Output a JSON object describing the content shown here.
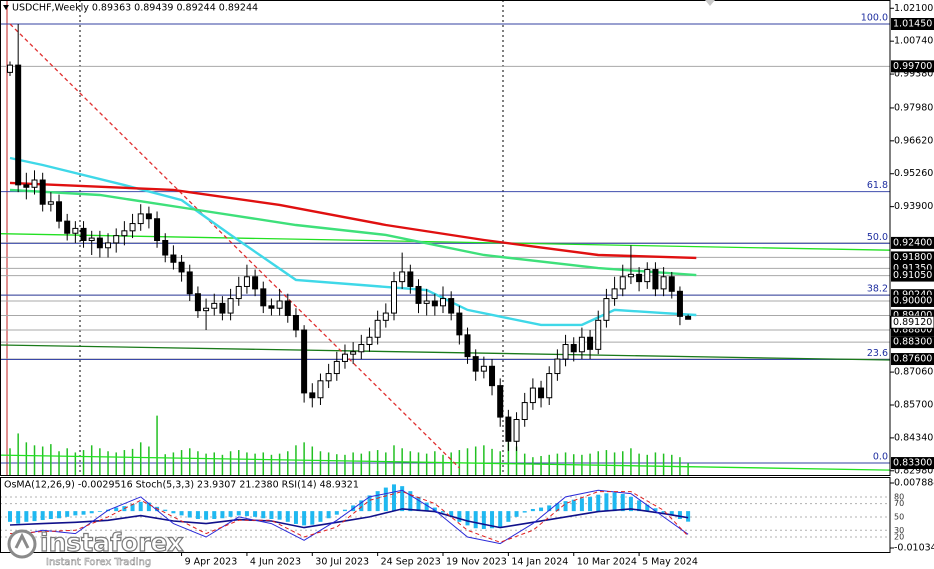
{
  "chart_data": {
    "type": "candlestick",
    "title": "USDCHF,Weekly  0.89363 0.89439 0.89244 0.89244",
    "dates": [
      null,
      null,
      null,
      null,
      null,
      null,
      null,
      null,
      null,
      null,
      null,
      null,
      null,
      null,
      null,
      null,
      null,
      null,
      null,
      null,
      null,
      "9 Apr 2023",
      null,
      null,
      null,
      null,
      null,
      null,
      null,
      "4 Jun 2023",
      null,
      null,
      null,
      null,
      null,
      null,
      null,
      "30 Jul 2023",
      null,
      null,
      null,
      null,
      null,
      null,
      null,
      "24 Sep 2023",
      null,
      null,
      null,
      null,
      null,
      null,
      null,
      "19 Nov 2023",
      null,
      null,
      null,
      null,
      null,
      null,
      null,
      "14 Jan 2024",
      null,
      null,
      null,
      null,
      null,
      null,
      null,
      "10 Mar 2024",
      null,
      null,
      null,
      null,
      null,
      null,
      null,
      "5 May 2024",
      null,
      null,
      null,
      null,
      null,
      null
    ],
    "open": [
      0.9945,
      0.9975,
      0.948,
      0.947,
      0.95,
      0.94,
      0.941,
      0.933,
      0.928,
      0.93,
      0.925,
      0.926,
      0.922,
      0.924,
      0.927,
      0.929,
      0.932,
      0.936,
      0.934,
      0.925,
      0.919,
      0.916,
      0.912,
      0.903,
      0.896,
      0.897,
      0.899,
      0.895,
      0.901,
      0.906,
      0.91,
      0.905,
      0.898,
      0.897,
      0.9,
      0.894,
      0.888,
      0.862,
      0.86,
      0.867,
      0.87,
      0.875,
      0.878,
      0.879,
      0.882,
      0.885,
      0.892,
      0.895,
      0.908,
      0.912,
      0.906,
      0.899,
      0.9,
      0.898,
      0.901,
      0.895,
      0.886,
      0.877,
      0.871,
      0.873,
      0.865,
      0.852,
      0.842,
      0.851,
      0.858,
      0.864,
      0.86,
      0.87,
      0.876,
      0.882,
      0.879,
      0.885,
      0.88,
      0.892,
      0.901,
      0.905,
      0.91,
      0.911,
      0.908,
      0.913,
      0.905,
      0.91,
      0.904,
      0.89363
    ],
    "high": [
      0.999,
      1.0145,
      0.953,
      0.954,
      0.953,
      0.945,
      0.944,
      0.936,
      0.933,
      0.933,
      0.929,
      0.929,
      0.928,
      0.93,
      0.933,
      0.936,
      0.94,
      0.939,
      0.937,
      0.928,
      0.923,
      0.919,
      0.915,
      0.906,
      0.901,
      0.903,
      0.902,
      0.905,
      0.91,
      0.915,
      0.913,
      0.908,
      0.901,
      0.905,
      0.903,
      0.897,
      0.89,
      0.866,
      0.87,
      0.874,
      0.879,
      0.882,
      0.883,
      0.886,
      0.889,
      0.896,
      0.899,
      0.912,
      0.92,
      0.915,
      0.909,
      0.905,
      0.903,
      0.906,
      0.904,
      0.898,
      0.889,
      0.88,
      0.877,
      0.876,
      0.868,
      0.855,
      0.854,
      0.862,
      0.868,
      0.867,
      0.873,
      0.88,
      0.886,
      0.885,
      0.889,
      0.888,
      0.896,
      0.905,
      0.91,
      0.915,
      0.923,
      0.914,
      0.916,
      0.916,
      0.914,
      0.912,
      0.906,
      0.89439
    ],
    "low": [
      0.993,
      0.945,
      0.942,
      0.944,
      0.937,
      0.937,
      0.93,
      0.925,
      0.924,
      0.922,
      0.919,
      0.918,
      0.918,
      0.92,
      0.923,
      0.926,
      0.929,
      0.93,
      0.922,
      0.916,
      0.913,
      0.908,
      0.9,
      0.893,
      0.888,
      0.894,
      0.892,
      0.892,
      0.898,
      0.903,
      0.902,
      0.895,
      0.894,
      0.894,
      0.891,
      0.885,
      0.858,
      0.856,
      0.857,
      0.864,
      0.867,
      0.872,
      0.874,
      0.876,
      0.879,
      0.882,
      0.889,
      0.892,
      0.905,
      0.903,
      0.895,
      0.894,
      0.894,
      0.895,
      0.892,
      0.882,
      0.874,
      0.867,
      0.868,
      0.861,
      0.848,
      0.838,
      0.838,
      0.848,
      0.855,
      0.856,
      0.857,
      0.867,
      0.873,
      0.875,
      0.876,
      0.876,
      0.878,
      0.889,
      0.898,
      0.902,
      0.907,
      0.904,
      0.905,
      0.902,
      0.902,
      0.901,
      0.89,
      0.89244
    ],
    "close": [
      0.9975,
      0.948,
      0.947,
      0.95,
      0.94,
      0.941,
      0.933,
      0.928,
      0.93,
      0.925,
      0.926,
      0.922,
      0.924,
      0.927,
      0.929,
      0.932,
      0.936,
      0.934,
      0.925,
      0.919,
      0.916,
      0.912,
      0.903,
      0.896,
      0.897,
      0.899,
      0.895,
      0.901,
      0.906,
      0.91,
      0.905,
      0.898,
      0.897,
      0.9,
      0.894,
      0.888,
      0.862,
      0.86,
      0.867,
      0.87,
      0.875,
      0.878,
      0.879,
      0.882,
      0.885,
      0.892,
      0.895,
      0.908,
      0.912,
      0.906,
      0.899,
      0.9,
      0.898,
      0.901,
      0.895,
      0.886,
      0.877,
      0.871,
      0.873,
      0.865,
      0.852,
      0.842,
      0.851,
      0.858,
      0.864,
      0.86,
      0.87,
      0.876,
      0.882,
      0.879,
      0.885,
      0.88,
      0.892,
      0.901,
      0.905,
      0.91,
      0.911,
      0.908,
      0.913,
      0.905,
      0.91,
      0.904,
      0.89363,
      0.89244
    ],
    "up_color": "#ffffff",
    "down_color": "#000000",
    "ylim": [
      0.82806,
      1.02442
    ],
    "yticks": [
      {
        "value": 1.021,
        "label": "1.02100"
      },
      {
        "value": 1.0074,
        "label": "1.00740"
      },
      {
        "value": 0.9938,
        "label": "0.99380"
      },
      {
        "value": 0.9798,
        "label": "0.97980"
      },
      {
        "value": 0.9662,
        "label": "0.96620"
      },
      {
        "value": 0.9526,
        "label": "0.95260"
      },
      {
        "value": 0.939,
        "label": "0.93900"
      },
      {
        "value": 0.8706,
        "label": "0.87060"
      },
      {
        "value": 0.857,
        "label": "0.85700"
      },
      {
        "value": 0.8434,
        "label": "0.84340"
      },
      {
        "value": 0.8298,
        "label": "0.82980"
      }
    ],
    "levels": [
      {
        "value": 1.0145,
        "label": "1.01450"
      },
      {
        "value": 0.997,
        "label": "0.99700"
      },
      {
        "value": 0.924,
        "label": "0.92400"
      },
      {
        "value": 0.918,
        "label": "0.91800"
      },
      {
        "value": 0.9135,
        "label": "0.91350"
      },
      {
        "value": 0.9105,
        "label": "0.91050"
      },
      {
        "value": 0.9024,
        "label": "0.90240"
      },
      {
        "value": 0.9,
        "label": "0.90000"
      },
      {
        "value": 0.894,
        "label": "0.89400"
      },
      {
        "value": 0.888,
        "label": "0.88800"
      },
      {
        "value": 0.883,
        "label": "0.88300"
      },
      {
        "value": 0.876,
        "label": "0.87600"
      },
      {
        "value": 0.833,
        "label": "0.83300"
      }
    ],
    "level_color": "#a8a8a8",
    "current_price": {
      "value": 0.8912,
      "label": "0.89120"
    },
    "fibo": [
      {
        "value": 1.0145,
        "label": "100.0"
      },
      {
        "value": 0.9452,
        "label": "61.8"
      },
      {
        "value": 0.9238,
        "label": "50.0"
      },
      {
        "value": 0.9024,
        "label": "38.2"
      },
      {
        "value": 0.8758,
        "label": "23.6"
      },
      {
        "value": 0.833,
        "label": "0.0"
      }
    ],
    "fibo_color": "#1f2fa0",
    "moving_averages": [
      {
        "color": "#3fd8e8",
        "x": [
          0,
          4,
          14,
          21,
          27,
          35,
          43,
          51,
          56,
          65,
          70,
          74,
          80,
          84
        ],
        "values": [
          0.9591,
          0.9562,
          0.9479,
          0.9417,
          0.9273,
          0.9087,
          0.9066,
          0.9045,
          0.8963,
          0.8901,
          0.8901,
          0.8963,
          0.895,
          0.8942
        ]
      },
      {
        "color": "#3ee07a",
        "x": [
          0,
          11,
          23,
          35,
          46,
          58,
          72,
          84
        ],
        "values": [
          0.9459,
          0.9438,
          0.9376,
          0.9314,
          0.9273,
          0.919,
          0.9136,
          0.9107
        ]
      },
      {
        "color": "#e01010",
        "x": [
          0,
          20,
          33,
          46,
          58,
          72,
          84
        ],
        "values": [
          0.9488,
          0.9459,
          0.9397,
          0.9314,
          0.9252,
          0.919,
          0.9178
        ]
      }
    ],
    "trendlines": [
      {
        "color": "#22e022",
        "x": [
          -1.2,
          107.7
        ],
        "values": [
          0.9278,
          0.921
        ]
      },
      {
        "color": "#1a7a1a",
        "x": [
          -1.2,
          107.7
        ],
        "values": [
          0.8818,
          0.8756
        ]
      },
      {
        "color": "#22e022",
        "x": [
          -1.2,
          107.7
        ],
        "values": [
          0.8363,
          0.8301
        ]
      },
      {
        "color": "#e03030",
        "x": [
          0,
          55
        ],
        "values": [
          1.0145,
          0.831
        ],
        "dash": true
      }
    ],
    "volume": {
      "color": "#22c022",
      "ylim": [
        0,
        800
      ],
      "values": [
        45,
        70,
        55,
        50,
        48,
        52,
        40,
        45,
        38,
        42,
        50,
        45,
        40,
        38,
        42,
        44,
        55,
        48,
        100,
        35,
        38,
        42,
        45,
        40,
        36,
        38,
        34,
        40,
        42,
        38,
        36,
        38,
        34,
        36,
        40,
        50,
        55,
        48,
        40,
        38,
        35,
        34,
        38,
        36,
        40,
        42,
        38,
        50,
        45,
        40,
        38,
        36,
        40,
        34,
        38,
        42,
        45,
        48,
        50,
        44,
        40,
        55,
        48,
        36,
        30,
        32,
        34,
        36,
        38,
        35,
        34,
        36,
        40,
        42,
        38,
        40,
        45,
        36,
        34,
        38,
        36,
        34,
        30,
        20
      ]
    },
    "indicators": {
      "title": "OsMA(12,26,9) -0.0029516  Stoch(5,3,3) 23.9307 21.2380  RSI(14) 48.9321",
      "ylim": [
        -0.01034,
        0.007884
      ],
      "yticks": [
        0.007884,
        {
          "value": -0.01034,
          "label": "-0.010340"
        }
      ],
      "osma": {
        "color": "#1fb8f0",
        "values": [
          -0.003,
          -0.0035,
          -0.003,
          -0.0028,
          -0.0025,
          -0.0022,
          -0.002,
          -0.0016,
          -0.0012,
          -0.001,
          -0.0006,
          -0.0002,
          0.0004,
          0.001,
          0.0014,
          0.002,
          0.0026,
          0.0024,
          0.0012,
          0.0004,
          -0.0006,
          -0.0012,
          -0.0018,
          -0.0022,
          -0.0024,
          -0.0022,
          -0.002,
          -0.0016,
          -0.0012,
          -0.0014,
          -0.0016,
          -0.002,
          -0.0022,
          -0.0024,
          -0.003,
          -0.0036,
          -0.004,
          -0.0038,
          -0.003,
          -0.002,
          -0.001,
          0.0004,
          0.0016,
          0.003,
          0.0044,
          0.0056,
          0.0066,
          0.0075,
          0.007,
          0.0056,
          0.004,
          0.0024,
          0.001,
          -0.0004,
          -0.0016,
          -0.003,
          -0.004,
          -0.0048,
          -0.005,
          -0.0048,
          -0.0044,
          -0.003,
          -0.0016,
          -0.0004,
          0.0006,
          0.001,
          0.0016,
          0.0022,
          0.0028,
          0.0032,
          0.0036,
          0.004,
          0.0046,
          0.005,
          0.0052,
          0.0048,
          0.004,
          0.003,
          0.0018,
          0.0008,
          -0.0004,
          -0.0012,
          -0.0022,
          -0.0029516
        ]
      },
      "osc_lim": [
        0,
        100
      ],
      "osc_ticks": [
        80,
        70,
        50,
        30,
        20
      ],
      "rsi": {
        "color": "#10108a",
        "x": [
          0,
          4,
          8,
          12,
          16,
          20,
          24,
          28,
          32,
          36,
          40,
          44,
          48,
          52,
          56,
          60,
          64,
          68,
          72,
          76,
          80,
          83
        ],
        "values": [
          38,
          40,
          42,
          45,
          52,
          44,
          40,
          46,
          44,
          34,
          42,
          50,
          62,
          58,
          44,
          34,
          42,
          50,
          58,
          62,
          55,
          48.9321
        ]
      },
      "stoch_main": {
        "color": "#2a2ad8",
        "x": [
          0,
          4,
          8,
          12,
          16,
          20,
          24,
          28,
          32,
          36,
          40,
          44,
          48,
          52,
          56,
          60,
          64,
          68,
          72,
          76,
          80,
          83
        ],
        "values": [
          20,
          30,
          25,
          60,
          80,
          40,
          20,
          50,
          40,
          15,
          45,
          80,
          90,
          60,
          20,
          10,
          40,
          80,
          90,
          85,
          50,
          23.9307
        ]
      },
      "stoch_signal": {
        "color": "#e02020",
        "dash": true,
        "x": [
          0,
          4,
          8,
          12,
          16,
          20,
          24,
          28,
          32,
          36,
          40,
          44,
          48,
          52,
          56,
          60,
          64,
          68,
          72,
          76,
          80,
          83
        ],
        "values": [
          25,
          28,
          30,
          50,
          75,
          50,
          25,
          45,
          45,
          20,
          35,
          75,
          88,
          70,
          30,
          12,
          30,
          70,
          88,
          88,
          60,
          21.238
        ]
      }
    }
  },
  "watermark": {
    "brand": "instaforex",
    "tagline": "Instant Forex Trading"
  }
}
